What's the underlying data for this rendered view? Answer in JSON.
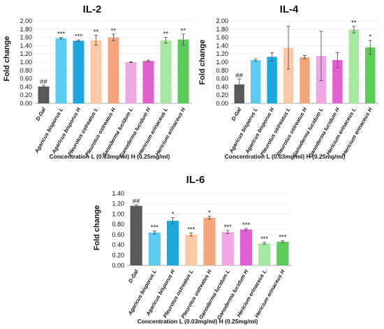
{
  "chart_data": [
    {
      "type": "bar",
      "title": "IL-2",
      "ylabel": "Fold change",
      "xlabel": "Concentration L (0.03mg/ml)  H (0.25mg/ml)",
      "categories": [
        "D-Gal",
        "Agaricus bisporus L",
        "Agaricus bisporus H",
        "Pleurotus ostreatus L",
        "Pleurotus ostreatus H",
        "Ganoderma lucidum L",
        "Ganoderma lucidum H",
        "Hericium erinaceus L",
        "Hericium erinaceus H"
      ],
      "values": [
        0.41,
        1.58,
        1.52,
        1.53,
        1.6,
        1.0,
        1.03,
        1.53,
        1.55
      ],
      "errors": [
        0.03,
        0.02,
        0.02,
        0.12,
        0.08,
        0.01,
        0.02,
        0.07,
        0.13
      ],
      "annotations": [
        "##",
        "***",
        "***",
        "**",
        "**",
        "",
        "",
        "**",
        "**"
      ],
      "colors": [
        "#595959",
        "#5bcbee",
        "#1ea7dc",
        "#f9c9a8",
        "#f4a57c",
        "#f0a8e4",
        "#e060cf",
        "#a8e6a3",
        "#5ccb5a"
      ],
      "yticks": [
        "0.00",
        "0.20",
        "0.40",
        "0.60",
        "0.80",
        "1.00",
        "1.20",
        "1.40",
        "1.60",
        "1.80",
        "2.00"
      ],
      "ylim": [
        0,
        2.0
      ]
    },
    {
      "type": "bar",
      "title": "IL-4",
      "ylabel": "Fold change",
      "xlabel": "Concentration L (0.03mg/ml)  H (0.25mg/ml)",
      "categories": [
        "D-Gal",
        "Agaricus bisporus L",
        "Agaricus bisporus H",
        "Pleurotus ostreatus L",
        "Pleurotus ostreatus H",
        "Ganoderma lucidum L",
        "Ganoderma lucidum H",
        "Hericium erinaceus L",
        "Hericium erinaceus H"
      ],
      "values": [
        0.46,
        1.05,
        1.13,
        1.35,
        1.12,
        1.15,
        1.05,
        1.79,
        1.36
      ],
      "errors": [
        0.13,
        0.03,
        0.1,
        0.52,
        0.04,
        0.6,
        0.18,
        0.08,
        0.17
      ],
      "annotations": [
        "##",
        "",
        "",
        "",
        "",
        "",
        "",
        "**",
        "*"
      ],
      "colors": [
        "#595959",
        "#5bcbee",
        "#1ea7dc",
        "#f9c9a8",
        "#f4a57c",
        "#f0a8e4",
        "#e060cf",
        "#a8e6a3",
        "#5ccb5a"
      ],
      "yticks": [
        "0.00",
        "0.20",
        "0.40",
        "0.60",
        "0.80",
        "1.00",
        "1.20",
        "1.40",
        "1.60",
        "1.80",
        "2.00"
      ],
      "ylim": [
        0,
        2.0
      ]
    },
    {
      "type": "bar",
      "title": "IL-6",
      "ylabel": "Fold change",
      "xlabel": "Concentration L (0.03mg/ml) H (0.25mg/ml)",
      "categories": [
        "D-Gal",
        "Agaricus bisporus L",
        "Agaricus bisporus  H",
        "Pleurotus ostreatus L",
        "Pleurotus ostreatus H",
        "Ganoderma lucidum  L",
        "Ganoderma lucidum  H",
        "Hericium erinaceus  L",
        "Hericium erinaceus  H"
      ],
      "values": [
        1.16,
        0.64,
        0.87,
        0.6,
        0.93,
        0.65,
        0.7,
        0.43,
        0.46
      ],
      "errors": [
        0.02,
        0.03,
        0.06,
        0.03,
        0.03,
        0.03,
        0.02,
        0.02,
        0.02
      ],
      "annotations": [
        "##",
        "***",
        "*",
        "***",
        "*",
        "***",
        "***",
        "***",
        "***"
      ],
      "colors": [
        "#595959",
        "#5bcbee",
        "#1ea7dc",
        "#f9c9a8",
        "#f4a57c",
        "#f0a8e4",
        "#e060cf",
        "#a8e6a3",
        "#5ccb5a"
      ],
      "yticks": [
        "0.00",
        "0.20",
        "0.40",
        "0.60",
        "0.80",
        "1.00",
        "1.20",
        "1.40"
      ],
      "ylim": [
        0,
        1.4
      ]
    }
  ]
}
